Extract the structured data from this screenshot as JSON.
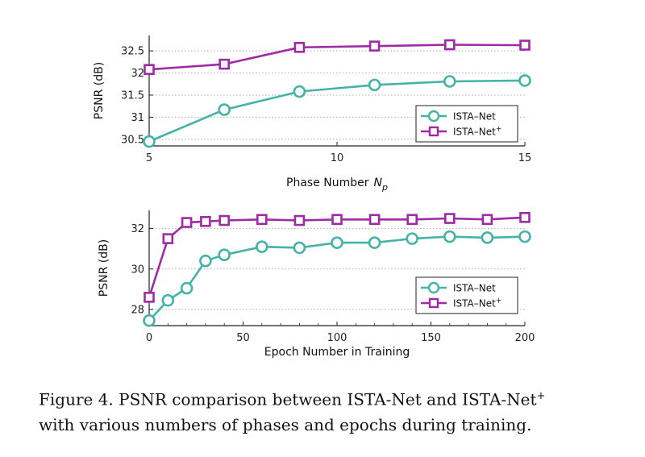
{
  "colors": {
    "ista_net": "#45b3a8",
    "ista_net_plus": "#9e2aa6",
    "axis": "#222222",
    "grid": "#aaaaaa"
  },
  "chart_data": [
    {
      "type": "line",
      "xlabel": "Phase Number",
      "xlabel_symbol": "N",
      "xlabel_subscript": "p",
      "ylabel": "PSNR (dB)",
      "xlim": [
        5,
        15
      ],
      "ylim": [
        30.35,
        32.85
      ],
      "xticks": [
        5,
        10,
        15
      ],
      "xtick_labels": [
        "5",
        "10",
        "15"
      ],
      "yticks": [
        30.5,
        31,
        31.5,
        32,
        32.5
      ],
      "ytick_labels": [
        "30.5",
        "31",
        "31.5",
        "32",
        "32.5"
      ],
      "grid": "horizontal dotted",
      "legend_position": "bottom-right",
      "series": [
        {
          "name": "ISTA–Net",
          "marker": "circle",
          "x": [
            5,
            7,
            9,
            11,
            13,
            15
          ],
          "values": [
            30.45,
            31.17,
            31.58,
            31.73,
            31.81,
            31.83
          ]
        },
        {
          "name": "ISTA–Net",
          "name_sup": "+",
          "marker": "square",
          "x": [
            5,
            7,
            9,
            11,
            13,
            15
          ],
          "values": [
            32.08,
            32.2,
            32.58,
            32.61,
            32.64,
            32.63
          ]
        }
      ]
    },
    {
      "type": "line",
      "xlabel": "Epoch Number in Training",
      "ylabel": "PSNR (dB)",
      "xlim": [
        0,
        200
      ],
      "ylim": [
        27.2,
        32.9
      ],
      "xticks": [
        0,
        50,
        100,
        150,
        200
      ],
      "xtick_labels": [
        "0",
        "50",
        "100",
        "150",
        "200"
      ],
      "yticks": [
        28,
        30,
        32
      ],
      "ytick_labels": [
        "28",
        "30",
        "32"
      ],
      "grid": "horizontal dotted",
      "legend_position": "bottom-right",
      "series": [
        {
          "name": "ISTA–Net",
          "marker": "circle",
          "x": [
            0,
            10,
            20,
            30,
            40,
            60,
            80,
            100,
            120,
            140,
            160,
            180,
            200
          ],
          "values": [
            27.45,
            28.45,
            29.05,
            30.4,
            30.7,
            31.1,
            31.05,
            31.3,
            31.3,
            31.5,
            31.6,
            31.55,
            31.6
          ]
        },
        {
          "name": "ISTA–Net",
          "name_sup": "+",
          "marker": "square",
          "x": [
            0,
            10,
            20,
            30,
            40,
            60,
            80,
            100,
            120,
            140,
            160,
            180,
            200
          ],
          "values": [
            28.6,
            31.5,
            32.3,
            32.35,
            32.4,
            32.45,
            32.4,
            32.45,
            32.45,
            32.45,
            32.5,
            32.45,
            32.55
          ]
        }
      ]
    }
  ],
  "caption": {
    "line1": "Figure 4. PSNR comparison between ISTA-Net and ISTA-Net",
    "line1_sup": "+",
    "line2": "with various numbers of phases and epochs during training."
  }
}
